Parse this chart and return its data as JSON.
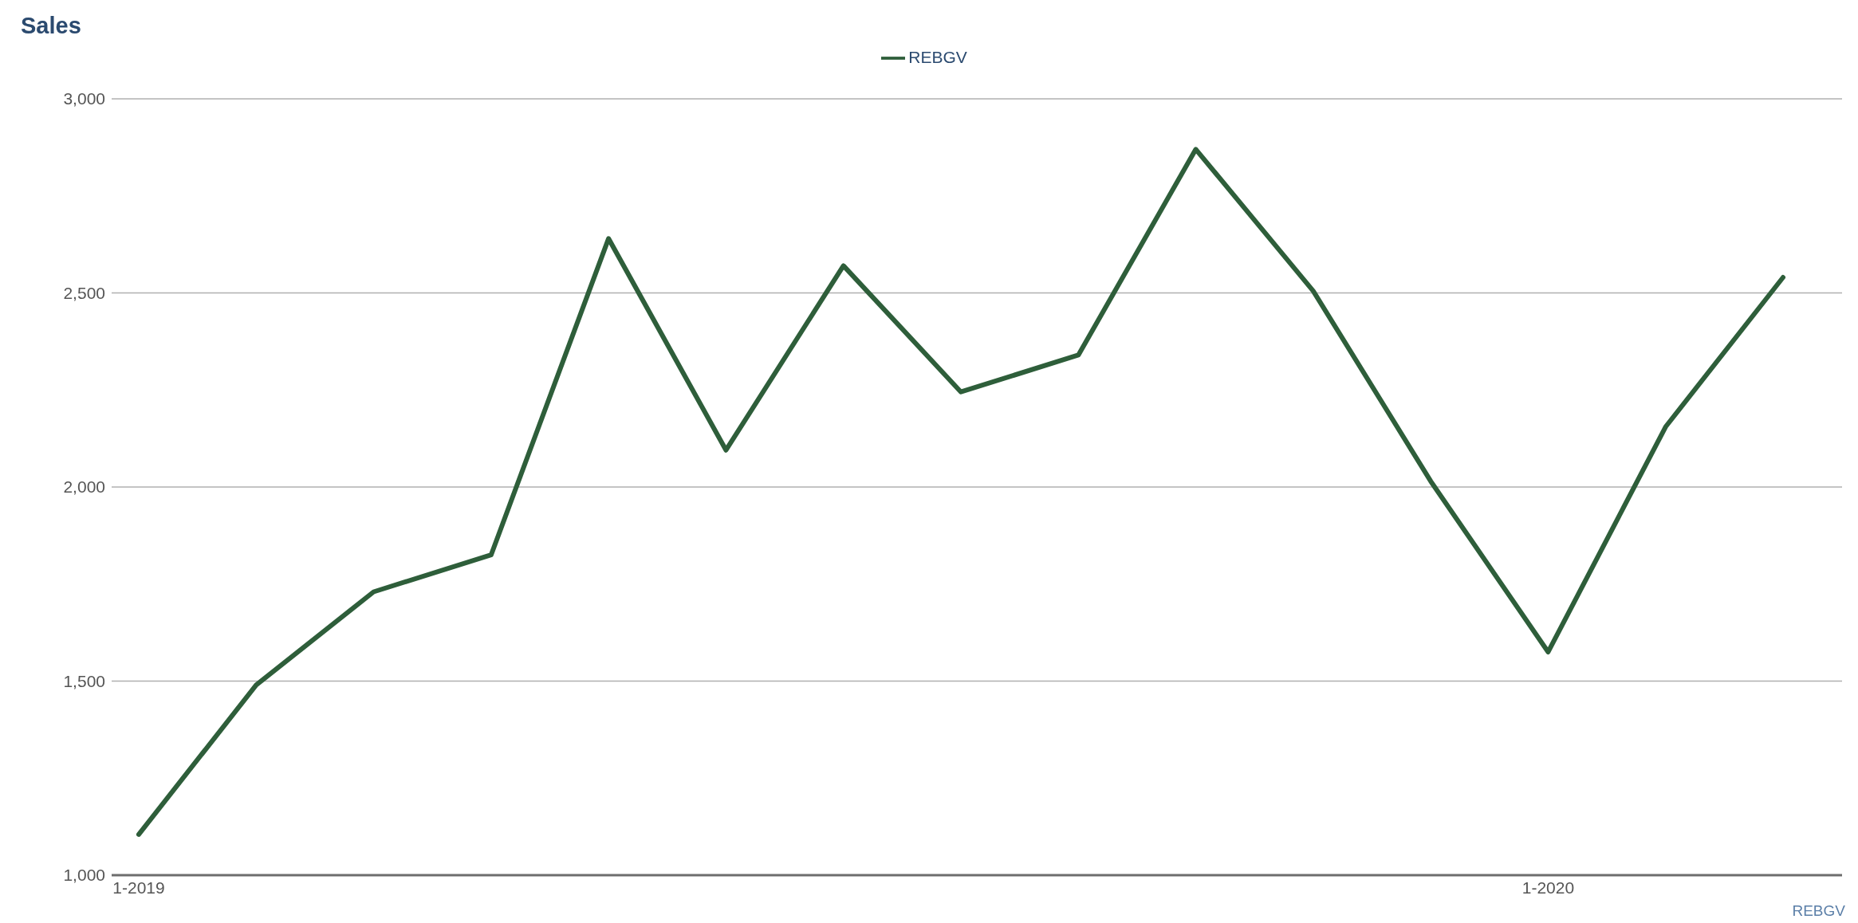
{
  "chart_data": {
    "type": "line",
    "title": "Sales",
    "categories": [
      "1-2019",
      null,
      null,
      null,
      null,
      null,
      null,
      null,
      null,
      null,
      null,
      null,
      "1-2020",
      null,
      null
    ],
    "series": [
      {
        "name": "REBGV",
        "color": "#2e5e3a",
        "values": [
          1105,
          1490,
          1730,
          1825,
          2640,
          2095,
          2570,
          2245,
          2340,
          2870,
          2505,
          2015,
          1575,
          2155,
          2540
        ]
      }
    ],
    "ylim": [
      1000,
      3000
    ],
    "yticks": [
      {
        "value": 1000,
        "label": "1,000"
      },
      {
        "value": 1500,
        "label": "1,500"
      },
      {
        "value": 2000,
        "label": "2,000"
      },
      {
        "value": 2500,
        "label": "2,500"
      },
      {
        "value": 3000,
        "label": "3,000"
      }
    ],
    "grid": "y",
    "legend": "top",
    "marker": "none",
    "line_style": "solid",
    "annotations": [
      "REBGV"
    ]
  }
}
